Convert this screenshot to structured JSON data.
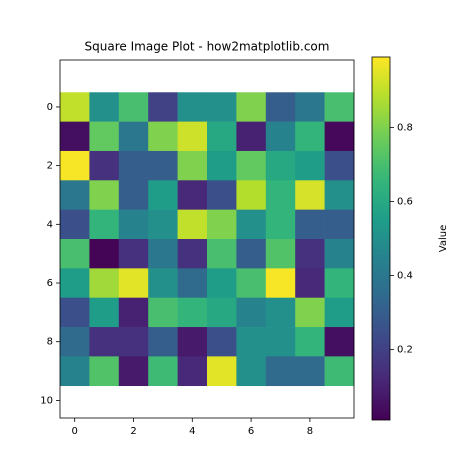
{
  "chart_data": {
    "type": "heatmap",
    "title": "Square Image Plot - how2matplotlib.com",
    "colormap": "viridis",
    "values": [
      [
        0.9,
        0.5,
        0.7,
        0.2,
        0.5,
        0.5,
        0.8,
        0.3,
        0.4,
        0.7
      ],
      [
        0.05,
        0.75,
        0.4,
        0.8,
        0.92,
        0.6,
        0.1,
        0.45,
        0.65,
        0.03
      ],
      [
        0.98,
        0.15,
        0.3,
        0.3,
        0.8,
        0.55,
        0.75,
        0.6,
        0.55,
        0.25
      ],
      [
        0.4,
        0.8,
        0.3,
        0.55,
        0.12,
        0.25,
        0.88,
        0.65,
        0.93,
        0.5
      ],
      [
        0.25,
        0.65,
        0.45,
        0.5,
        0.9,
        0.8,
        0.5,
        0.65,
        0.3,
        0.3
      ],
      [
        0.7,
        0.02,
        0.15,
        0.4,
        0.15,
        0.7,
        0.3,
        0.72,
        0.15,
        0.45
      ],
      [
        0.55,
        0.85,
        0.95,
        0.5,
        0.35,
        0.55,
        0.7,
        0.98,
        0.12,
        0.65
      ],
      [
        0.25,
        0.55,
        0.1,
        0.7,
        0.65,
        0.6,
        0.45,
        0.5,
        0.8,
        0.55
      ],
      [
        0.35,
        0.15,
        0.15,
        0.3,
        0.08,
        0.25,
        0.5,
        0.5,
        0.65,
        0.05
      ],
      [
        0.45,
        0.72,
        0.08,
        0.68,
        0.12,
        0.95,
        0.5,
        0.35,
        0.35,
        0.68
      ]
    ],
    "xlim": [
      -0.5,
      9.5
    ],
    "ylim": [
      10.6,
      -1.6
    ],
    "xticks": [
      0,
      2,
      4,
      6,
      8
    ],
    "yticks": [
      0,
      2,
      4,
      6,
      8,
      10
    ],
    "colorbar": {
      "label": "Value",
      "clim": [
        0.01,
        0.99
      ],
      "ticks": [
        0.2,
        0.4,
        0.6,
        0.8
      ]
    }
  }
}
